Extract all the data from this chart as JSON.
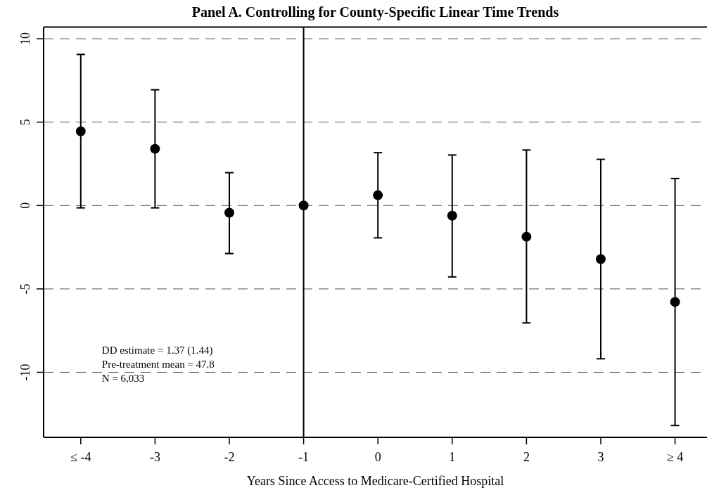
{
  "chart_data": {
    "type": "scatter",
    "title": "Panel A. Controlling for County-Specific Linear Time Trends",
    "xlabel": "Years Since Access to Medicare-Certified Hospital",
    "categories": [
      "≤ -4",
      "-3",
      "-2",
      "-1",
      "0",
      "1",
      "2",
      "3",
      "≥ 4"
    ],
    "values": [
      4.45,
      3.4,
      -0.43,
      0,
      0.62,
      -0.61,
      -1.87,
      -3.21,
      -5.78
    ],
    "errors": [
      [
        -0.14,
        9.06
      ],
      [
        -0.14,
        6.94
      ],
      [
        -2.88,
        1.97
      ],
      null,
      [
        -1.94,
        3.17
      ],
      [
        -4.28,
        3.03
      ],
      [
        -7.04,
        3.33
      ],
      [
        -9.19,
        2.77
      ],
      [
        -13.19,
        1.62
      ]
    ],
    "color": "#000000",
    "marker": "circle",
    "ylim": [
      -13.9,
      10.7
    ],
    "yticks": [
      -10,
      -5,
      0,
      5,
      10
    ],
    "grid": "y",
    "ref_lines": [
      {
        "axis": "x",
        "value": "-1",
        "color": "#000000",
        "line_style": "solid"
      }
    ],
    "annotations": [
      "DD estimate = 1.37 (1.44)",
      "Pre-treatment mean = 47.8",
      "N = 6,033"
    ]
  }
}
